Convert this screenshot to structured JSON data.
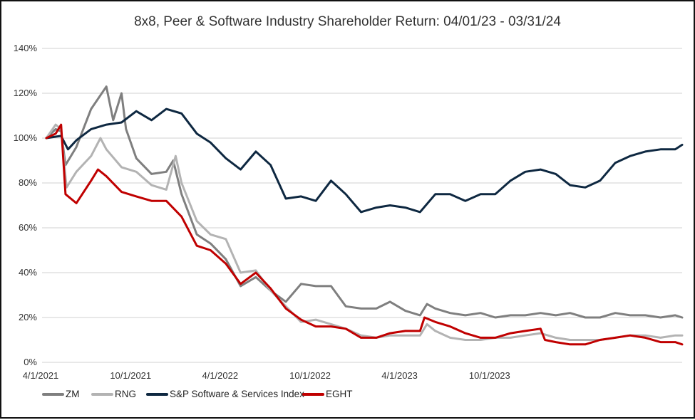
{
  "chart_data": {
    "type": "line",
    "title": "8x8, Peer & Software Industry Shareholder Return: 04/01/23 - 03/31/24",
    "xlabel": "",
    "ylabel": "",
    "ylim": [
      0,
      140
    ],
    "xlim": [
      "2021-04-01",
      "2024-10-15"
    ],
    "yticks": [
      "0%",
      "20%",
      "40%",
      "60%",
      "80%",
      "100%",
      "120%",
      "140%"
    ],
    "xticks": [
      {
        "date": "2021-04-01",
        "label": "4/1/2021"
      },
      {
        "date": "2021-10-01",
        "label": "10/1/2021"
      },
      {
        "date": "2022-04-01",
        "label": "4/1/2022"
      },
      {
        "date": "2022-10-01",
        "label": "10/1/2022"
      },
      {
        "date": "2023-04-01",
        "label": "4/1/2023"
      },
      {
        "date": "2023-10-01",
        "label": "10/1/2023"
      }
    ],
    "grid": true,
    "legend_position": "bottom",
    "series": [
      {
        "name": "ZM",
        "color": "#7f7f7f",
        "points": [
          [
            "2021-04-01",
            100
          ],
          [
            "2021-04-20",
            104
          ],
          [
            "2021-05-01",
            103
          ],
          [
            "2021-05-10",
            88
          ],
          [
            "2021-06-01",
            96
          ],
          [
            "2021-07-01",
            113
          ],
          [
            "2021-08-01",
            123
          ],
          [
            "2021-08-15",
            108
          ],
          [
            "2021-09-01",
            120
          ],
          [
            "2021-09-10",
            104
          ],
          [
            "2021-10-01",
            91
          ],
          [
            "2021-11-01",
            84
          ],
          [
            "2021-12-01",
            85
          ],
          [
            "2021-12-15",
            90
          ],
          [
            "2022-01-01",
            75
          ],
          [
            "2022-02-01",
            57
          ],
          [
            "2022-03-01",
            53
          ],
          [
            "2022-04-01",
            46
          ],
          [
            "2022-05-01",
            34
          ],
          [
            "2022-06-01",
            38
          ],
          [
            "2022-07-01",
            32
          ],
          [
            "2022-08-01",
            27
          ],
          [
            "2022-09-01",
            35
          ],
          [
            "2022-10-01",
            34
          ],
          [
            "2022-11-01",
            34
          ],
          [
            "2022-12-01",
            25
          ],
          [
            "2023-01-01",
            24
          ],
          [
            "2023-02-01",
            24
          ],
          [
            "2023-03-01",
            27
          ],
          [
            "2023-04-01",
            23
          ],
          [
            "2023-05-01",
            21
          ],
          [
            "2023-05-15",
            26
          ],
          [
            "2023-06-01",
            24
          ],
          [
            "2023-07-01",
            22
          ],
          [
            "2023-08-01",
            21
          ],
          [
            "2023-09-01",
            22
          ],
          [
            "2023-10-01",
            20
          ],
          [
            "2023-11-01",
            21
          ],
          [
            "2023-12-01",
            21
          ],
          [
            "2024-01-01",
            22
          ],
          [
            "2024-02-01",
            21
          ],
          [
            "2024-03-01",
            22
          ],
          [
            "2024-04-01",
            20
          ],
          [
            "2024-05-01",
            20
          ],
          [
            "2024-06-01",
            22
          ],
          [
            "2024-07-01",
            21
          ],
          [
            "2024-08-01",
            21
          ],
          [
            "2024-09-01",
            20
          ],
          [
            "2024-10-01",
            21
          ],
          [
            "2024-10-15",
            20
          ]
        ]
      },
      {
        "name": "RNG",
        "color": "#b3b3b3",
        "points": [
          [
            "2021-04-01",
            100
          ],
          [
            "2021-04-20",
            106
          ],
          [
            "2021-05-01",
            104
          ],
          [
            "2021-05-12",
            78
          ],
          [
            "2021-06-01",
            85
          ],
          [
            "2021-07-01",
            92
          ],
          [
            "2021-07-20",
            100
          ],
          [
            "2021-08-01",
            95
          ],
          [
            "2021-09-01",
            87
          ],
          [
            "2021-10-01",
            85
          ],
          [
            "2021-11-01",
            79
          ],
          [
            "2021-12-01",
            77
          ],
          [
            "2021-12-20",
            92
          ],
          [
            "2022-01-01",
            80
          ],
          [
            "2022-02-01",
            63
          ],
          [
            "2022-03-01",
            57
          ],
          [
            "2022-04-01",
            55
          ],
          [
            "2022-05-01",
            40
          ],
          [
            "2022-06-01",
            41
          ],
          [
            "2022-07-01",
            32
          ],
          [
            "2022-08-01",
            25
          ],
          [
            "2022-09-01",
            18
          ],
          [
            "2022-10-01",
            19
          ],
          [
            "2022-11-01",
            17
          ],
          [
            "2022-12-01",
            15
          ],
          [
            "2023-01-01",
            12
          ],
          [
            "2023-02-01",
            11
          ],
          [
            "2023-03-01",
            12
          ],
          [
            "2023-04-01",
            12
          ],
          [
            "2023-05-01",
            12
          ],
          [
            "2023-05-15",
            17
          ],
          [
            "2023-06-01",
            14
          ],
          [
            "2023-07-01",
            11
          ],
          [
            "2023-08-01",
            10
          ],
          [
            "2023-09-01",
            10
          ],
          [
            "2023-10-01",
            11
          ],
          [
            "2023-11-01",
            11
          ],
          [
            "2023-12-01",
            12
          ],
          [
            "2024-01-01",
            13
          ],
          [
            "2024-02-01",
            11
          ],
          [
            "2024-03-01",
            10
          ],
          [
            "2024-04-01",
            10
          ],
          [
            "2024-05-01",
            10
          ],
          [
            "2024-06-01",
            11
          ],
          [
            "2024-07-01",
            12
          ],
          [
            "2024-08-01",
            12
          ],
          [
            "2024-09-01",
            11
          ],
          [
            "2024-10-01",
            12
          ],
          [
            "2024-10-15",
            12
          ]
        ]
      },
      {
        "name": "S&P Software & Services Index",
        "color": "#0e2841",
        "points": [
          [
            "2021-04-01",
            100
          ],
          [
            "2021-05-01",
            101
          ],
          [
            "2021-05-15",
            95
          ],
          [
            "2021-06-01",
            99
          ],
          [
            "2021-07-01",
            104
          ],
          [
            "2021-08-01",
            106
          ],
          [
            "2021-09-01",
            107
          ],
          [
            "2021-10-01",
            112
          ],
          [
            "2021-11-01",
            108
          ],
          [
            "2021-12-01",
            113
          ],
          [
            "2022-01-01",
            111
          ],
          [
            "2022-02-01",
            102
          ],
          [
            "2022-03-01",
            98
          ],
          [
            "2022-04-01",
            91
          ],
          [
            "2022-05-01",
            86
          ],
          [
            "2022-06-01",
            94
          ],
          [
            "2022-07-01",
            88
          ],
          [
            "2022-08-01",
            73
          ],
          [
            "2022-09-01",
            74
          ],
          [
            "2022-10-01",
            72
          ],
          [
            "2022-11-01",
            81
          ],
          [
            "2022-12-01",
            75
          ],
          [
            "2023-01-01",
            67
          ],
          [
            "2023-02-01",
            69
          ],
          [
            "2023-03-01",
            70
          ],
          [
            "2023-04-01",
            69
          ],
          [
            "2023-05-01",
            67
          ],
          [
            "2023-06-01",
            75
          ],
          [
            "2023-07-01",
            75
          ],
          [
            "2023-08-01",
            72
          ],
          [
            "2023-09-01",
            75
          ],
          [
            "2023-10-01",
            75
          ],
          [
            "2023-11-01",
            81
          ],
          [
            "2023-12-01",
            85
          ],
          [
            "2024-01-01",
            86
          ],
          [
            "2024-02-01",
            84
          ],
          [
            "2024-03-01",
            79
          ],
          [
            "2024-04-01",
            78
          ],
          [
            "2024-05-01",
            81
          ],
          [
            "2024-06-01",
            89
          ],
          [
            "2024-07-01",
            92
          ],
          [
            "2024-08-01",
            94
          ],
          [
            "2024-09-01",
            95
          ],
          [
            "2024-10-01",
            95
          ],
          [
            "2024-10-15",
            97
          ]
        ]
      },
      {
        "name": "EGHT",
        "color": "#c00000",
        "points": [
          [
            "2021-04-01",
            100
          ],
          [
            "2021-04-20",
            102
          ],
          [
            "2021-05-01",
            106
          ],
          [
            "2021-05-10",
            75
          ],
          [
            "2021-06-01",
            71
          ],
          [
            "2021-07-01",
            81
          ],
          [
            "2021-07-15",
            86
          ],
          [
            "2021-08-01",
            83
          ],
          [
            "2021-09-01",
            76
          ],
          [
            "2021-10-01",
            74
          ],
          [
            "2021-11-01",
            72
          ],
          [
            "2021-12-01",
            72
          ],
          [
            "2022-01-01",
            65
          ],
          [
            "2022-02-01",
            52
          ],
          [
            "2022-03-01",
            50
          ],
          [
            "2022-04-01",
            44
          ],
          [
            "2022-05-01",
            35
          ],
          [
            "2022-06-01",
            40
          ],
          [
            "2022-07-01",
            33
          ],
          [
            "2022-08-01",
            24
          ],
          [
            "2022-09-01",
            19
          ],
          [
            "2022-10-01",
            16
          ],
          [
            "2022-11-01",
            16
          ],
          [
            "2022-12-01",
            15
          ],
          [
            "2023-01-01",
            11
          ],
          [
            "2023-02-01",
            11
          ],
          [
            "2023-03-01",
            13
          ],
          [
            "2023-04-01",
            14
          ],
          [
            "2023-05-01",
            14
          ],
          [
            "2023-05-10",
            20
          ],
          [
            "2023-06-01",
            18
          ],
          [
            "2023-07-01",
            16
          ],
          [
            "2023-08-01",
            13
          ],
          [
            "2023-09-01",
            11
          ],
          [
            "2023-10-01",
            11
          ],
          [
            "2023-11-01",
            13
          ],
          [
            "2023-12-01",
            14
          ],
          [
            "2024-01-01",
            15
          ],
          [
            "2024-01-10",
            10
          ],
          [
            "2024-02-01",
            9
          ],
          [
            "2024-03-01",
            8
          ],
          [
            "2024-04-01",
            8
          ],
          [
            "2024-05-01",
            10
          ],
          [
            "2024-06-01",
            11
          ],
          [
            "2024-07-01",
            12
          ],
          [
            "2024-08-01",
            11
          ],
          [
            "2024-09-01",
            9
          ],
          [
            "2024-10-01",
            9
          ],
          [
            "2024-10-15",
            8
          ]
        ]
      }
    ]
  }
}
